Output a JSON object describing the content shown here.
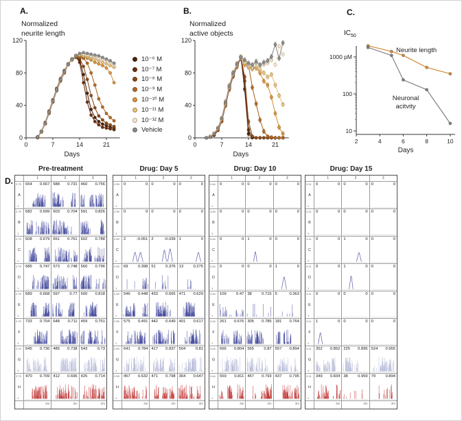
{
  "panels": {
    "a": {
      "label": "A.",
      "title1": "Normalized",
      "title2": "neurite length"
    },
    "b": {
      "label": "B.",
      "title1": "Normalized",
      "title2": "active objects"
    },
    "c": {
      "label": "C.",
      "ic_main": "IC",
      "ic_sub": "50",
      "annotation_neurite": "Neurite length",
      "annotation_neuronal_1": "Neuronal",
      "annotation_neuronal_2": "acitvity"
    },
    "d": {
      "label": "D."
    }
  },
  "mea": {
    "row_labels": [
      "A",
      "B",
      "C",
      "D",
      "E",
      "F",
      "G",
      "H"
    ],
    "col_labels": [
      "1",
      "2",
      "3"
    ],
    "ymin_label": "1",
    "time_label": "3m",
    "trace_color_default": "#4a50a0",
    "trace_color_row_g": "#b9bdd9",
    "trace_color_row_h": "#c23b3b"
  },
  "chart_data": [
    {
      "type": "line",
      "title": "Normalized neurite length",
      "xlabel": "Days",
      "ylabel": "Normalized neurite length",
      "xlim": [
        0,
        24
      ],
      "ylim": [
        0,
        120
      ],
      "xticks": [
        0,
        7,
        14,
        21
      ],
      "yticks": [
        0,
        40,
        80,
        120
      ],
      "legend_position": "right",
      "x": [
        3,
        4,
        5,
        6,
        7,
        8,
        9,
        10,
        11,
        12,
        13,
        14,
        15,
        16,
        17,
        18,
        19,
        20,
        21,
        22,
        23
      ],
      "series": [
        {
          "name": "10⁻⁶ M",
          "color": "#4b2410",
          "values": [
            1,
            8,
            18,
            32,
            46,
            60,
            72,
            82,
            91,
            97,
            100,
            96,
            78,
            55,
            35,
            25,
            20,
            17,
            15,
            13,
            12
          ]
        },
        {
          "name": "10⁻⁷ M",
          "color": "#693012",
          "values": [
            1,
            7,
            17,
            30,
            44,
            58,
            70,
            80,
            90,
            96,
            100,
            93,
            68,
            44,
            28,
            20,
            16,
            13,
            12,
            11,
            10
          ]
        },
        {
          "name": "10⁻⁸ M",
          "color": "#8a4a1c",
          "values": [
            1,
            8,
            19,
            33,
            47,
            61,
            73,
            83,
            91,
            97,
            99,
            98,
            88,
            72,
            52,
            37,
            27,
            22,
            18,
            16,
            14
          ]
        },
        {
          "name": "10⁻⁹ M",
          "color": "#b06a28",
          "values": [
            0,
            7,
            17,
            31,
            45,
            59,
            71,
            81,
            90,
            96,
            100,
            100,
            98,
            92,
            80,
            65,
            48,
            38,
            30,
            25,
            21
          ]
        },
        {
          "name": "10⁻¹⁰ M",
          "color": "#d6953f",
          "values": [
            1,
            8,
            18,
            32,
            46,
            60,
            72,
            82,
            91,
            97,
            100,
            101,
            100,
            98,
            96,
            93,
            91,
            89,
            86,
            80,
            68
          ]
        },
        {
          "name": "10⁻¹¹ M",
          "color": "#eac47c",
          "values": [
            1,
            7,
            17,
            31,
            45,
            59,
            71,
            81,
            90,
            96,
            101,
            102,
            101,
            100,
            99,
            97,
            95,
            93,
            91,
            89,
            87
          ]
        },
        {
          "name": "10⁻¹² M",
          "color": "#f7ead0",
          "values": [
            1,
            8,
            18,
            32,
            46,
            60,
            72,
            82,
            91,
            97,
            102,
            103,
            103,
            102,
            101,
            100,
            98,
            97,
            95,
            93,
            90
          ]
        },
        {
          "name": "Vehicle",
          "color": "#8c8c8c",
          "values": [
            1,
            8,
            18,
            32,
            46,
            60,
            72,
            82,
            91,
            97,
            101,
            104,
            105,
            104,
            103,
            102,
            101,
            99,
            97,
            95,
            92
          ]
        }
      ]
    },
    {
      "type": "line",
      "title": "Normalized active objects",
      "xlabel": "Days",
      "ylabel": "Normalized active objects",
      "xlim": [
        0,
        24
      ],
      "ylim": [
        0,
        120
      ],
      "xticks": [
        0,
        7,
        14,
        21
      ],
      "yticks": [
        0,
        40,
        80,
        120
      ],
      "error_bars": true,
      "x": [
        3,
        4,
        5,
        6,
        7,
        8,
        9,
        10,
        11,
        12,
        13,
        14,
        15,
        16,
        17,
        18,
        19,
        20,
        21,
        22,
        23
      ],
      "series": [
        {
          "name": "10⁻⁶ M",
          "color": "#4b2410",
          "values": [
            0,
            1,
            4,
            10,
            22,
            42,
            62,
            78,
            90,
            100,
            60,
            5,
            0,
            0,
            0,
            0,
            0,
            0,
            0,
            0,
            0
          ]
        },
        {
          "name": "10⁻⁷ M",
          "color": "#693012",
          "values": [
            0,
            1,
            3,
            9,
            20,
            40,
            60,
            76,
            88,
            98,
            70,
            10,
            1,
            0,
            0,
            0,
            0,
            0,
            0,
            0,
            0
          ]
        },
        {
          "name": "10⁻⁸ M",
          "color": "#8a4a1c",
          "values": [
            0,
            1,
            4,
            11,
            23,
            43,
            63,
            79,
            91,
            100,
            75,
            20,
            2,
            0,
            0,
            0,
            0,
            0,
            0,
            0,
            0
          ]
        },
        {
          "name": "10⁻⁹ M",
          "color": "#b06a28",
          "values": [
            0,
            1,
            4,
            10,
            21,
            41,
            61,
            77,
            89,
            99,
            92,
            90,
            62,
            42,
            22,
            8,
            2,
            1,
            0,
            0,
            0
          ]
        },
        {
          "name": "10⁻¹⁰ M",
          "color": "#d6953f",
          "values": [
            0,
            2,
            5,
            12,
            24,
            44,
            64,
            80,
            91,
            100,
            90,
            87,
            85,
            86,
            80,
            70,
            65,
            50,
            30,
            13,
            5
          ]
        },
        {
          "name": "10⁻¹¹ M",
          "color": "#eac47c",
          "values": [
            0,
            1,
            5,
            11,
            23,
            43,
            63,
            79,
            90,
            99,
            92,
            88,
            86,
            88,
            84,
            80,
            75,
            78,
            65,
            52,
            41
          ]
        },
        {
          "name": "10⁻¹² M",
          "color": "#f7ead0",
          "values": [
            0,
            2,
            6,
            13,
            25,
            45,
            65,
            81,
            92,
            100,
            95,
            90,
            88,
            92,
            88,
            90,
            92,
            96,
            90,
            113,
            103
          ]
        },
        {
          "name": "Vehicle",
          "color": "#8c8c8c",
          "values": [
            0,
            1,
            5,
            12,
            24,
            44,
            64,
            80,
            91,
            99,
            96,
            92,
            90,
            94,
            90,
            93,
            95,
            100,
            115,
            98,
            117
          ]
        }
      ]
    },
    {
      "type": "line",
      "title": "IC50",
      "xlabel": "Days",
      "ylabel": "IC50",
      "log_y": true,
      "xticks": [
        2,
        4,
        6,
        8,
        10
      ],
      "ytick_values": [
        1000,
        100,
        10
      ],
      "ytick_labels": [
        "1000 pM",
        "100",
        "10"
      ],
      "x": [
        3,
        5,
        6,
        8,
        10
      ],
      "series": [
        {
          "name": "Neurite length",
          "color": "#cf8936",
          "values": [
            2000,
            1400,
            1100,
            520,
            350
          ]
        },
        {
          "name": "Neuronal acitvity",
          "color": "#7f7f7f",
          "values": [
            1800,
            1100,
            240,
            130,
            16
          ]
        }
      ]
    },
    {
      "type": "table",
      "title": "Pre-treatment",
      "ymax_label": "2.79",
      "rows": [
        [
          [
            "654",
            "0.667"
          ],
          [
            "588",
            "0.731"
          ],
          [
            "460",
            "0.756"
          ]
        ],
        [
          [
            "682",
            "0.699"
          ],
          [
            "603",
            "0.704"
          ],
          [
            "591",
            "0.826"
          ]
        ],
        [
          [
            "608",
            "0.679"
          ],
          [
            "651",
            "0.761"
          ],
          [
            "602",
            "0.788"
          ]
        ],
        [
          [
            "685",
            "0.747"
          ],
          [
            "573",
            "0.748"
          ],
          [
            "560",
            "0.796"
          ]
        ],
        [
          [
            "689",
            "0.668"
          ],
          [
            "597",
            "0.77"
          ],
          [
            "600",
            "0.818"
          ]
        ],
        [
          [
            "733",
            "0.704"
          ],
          [
            "648",
            "0.711"
          ],
          [
            "459",
            "0.751"
          ]
        ],
        [
          [
            "645",
            "0.736"
          ],
          [
            "485",
            "0.738"
          ],
          [
            "543",
            "0.73"
          ]
        ],
        [
          [
            "470",
            "0.709"
          ],
          [
            "412",
            "0.696"
          ],
          [
            "425",
            "0.714"
          ]
        ]
      ]
    },
    {
      "type": "table",
      "title": "Drug: Day 5",
      "ymax_label": "2.59",
      "rows": [
        [
          [
            "0",
            "0"
          ],
          [
            "0",
            "0"
          ],
          [
            "0",
            "0"
          ]
        ],
        [
          [
            "0",
            "0"
          ],
          [
            "0",
            "0"
          ],
          [
            "0",
            "0"
          ]
        ],
        [
          [
            "2",
            "-0.051"
          ],
          [
            "2",
            "-0.039"
          ],
          [
            "1",
            "0"
          ]
        ],
        [
          [
            "69",
            "0.398"
          ],
          [
            "51",
            "0.376"
          ],
          [
            "13",
            "0.275"
          ]
        ],
        [
          [
            "546",
            "0.448"
          ],
          [
            "433",
            "0.665"
          ],
          [
            "471",
            "0.629"
          ]
        ],
        [
          [
            "575",
            "0.491"
          ],
          [
            "442",
            "0.649"
          ],
          [
            "401",
            "0.617"
          ]
        ],
        [
          [
            "641",
            "0.784"
          ],
          [
            "417",
            "0.837"
          ],
          [
            "504",
            "0.81"
          ]
        ],
        [
          [
            "457",
            "0.632"
          ],
          [
            "471",
            "0.798"
          ],
          [
            "364",
            "0.647"
          ]
        ]
      ]
    },
    {
      "type": "table",
      "title": "Drug: Day 10",
      "ymax_label": "3.44",
      "rows": [
        [
          [
            "0",
            "0"
          ],
          [
            "0",
            "0"
          ],
          [
            "0",
            "0"
          ]
        ],
        [
          [
            "0",
            "0"
          ],
          [
            "0",
            "0"
          ],
          [
            "0",
            "0"
          ]
        ],
        [
          [
            "0",
            "0"
          ],
          [
            "1",
            "0"
          ],
          [
            "0",
            "0"
          ]
        ],
        [
          [
            "0",
            "0"
          ],
          [
            "0",
            "0"
          ],
          [
            "1",
            "0"
          ]
        ],
        [
          [
            "109",
            "0.47"
          ],
          [
            "38",
            "0.715"
          ],
          [
            "5",
            "0.363"
          ]
        ],
        [
          [
            "261",
            "0.676"
          ],
          [
            "305",
            "0.785"
          ],
          [
            "181",
            "0.764"
          ]
        ],
        [
          [
            "666",
            "0.804"
          ],
          [
            "565",
            "0.87"
          ],
          [
            "557",
            "0.894"
          ]
        ],
        [
          [
            "559",
            "0.811"
          ],
          [
            "457",
            "0.793"
          ],
          [
            "437",
            "0.795"
          ]
        ]
      ]
    },
    {
      "type": "table",
      "title": "Drug: Day 15",
      "ymax_label": "3.11",
      "rows": [
        [
          [
            "0",
            "0"
          ],
          [
            "0",
            "0"
          ],
          [
            "0",
            "0"
          ]
        ],
        [
          [
            "0",
            "0"
          ],
          [
            "0",
            "0"
          ],
          [
            "0",
            "0"
          ]
        ],
        [
          [
            "0",
            "0"
          ],
          [
            "1",
            "0"
          ],
          [
            "0",
            "0"
          ]
        ],
        [
          [
            "0",
            "0"
          ],
          [
            "1",
            "0"
          ],
          [
            "0",
            "0"
          ]
        ],
        [
          [
            "0",
            "0"
          ],
          [
            "0",
            "0"
          ],
          [
            "0",
            "0"
          ]
        ],
        [
          [
            "1",
            "0"
          ],
          [
            "0",
            "0"
          ],
          [
            "0",
            "0"
          ]
        ],
        [
          [
            "352",
            "0.852"
          ],
          [
            "225",
            "0.895"
          ],
          [
            "524",
            "0.955"
          ]
        ],
        [
          [
            "349",
            "0.834"
          ],
          [
            "38",
            "0.959"
          ],
          [
            "79",
            "0.894"
          ]
        ]
      ]
    }
  ]
}
